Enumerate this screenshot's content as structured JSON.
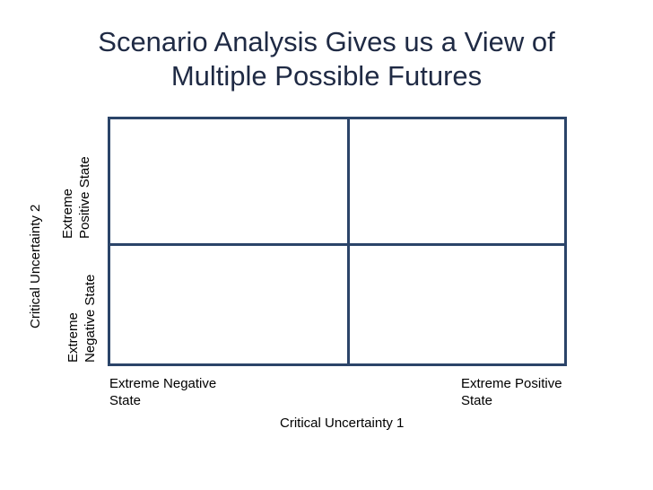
{
  "title": {
    "line1": "Scenario Analysis Gives us a View of",
    "line2": "Multiple Possible Futures"
  },
  "x_axis": {
    "title": "Critical Uncertainty 1",
    "low_label": [
      "Extreme Negative",
      "State"
    ],
    "high_label": [
      "Extreme Positive",
      "State"
    ]
  },
  "y_axis": {
    "title": "Critical Uncertainty 2",
    "high_label": [
      "Extreme",
      "Positive State"
    ],
    "low_label": [
      "Extreme",
      "Negative State"
    ]
  },
  "colors": {
    "grid_line": "#2b4469",
    "title_text": "#1f2a44"
  }
}
